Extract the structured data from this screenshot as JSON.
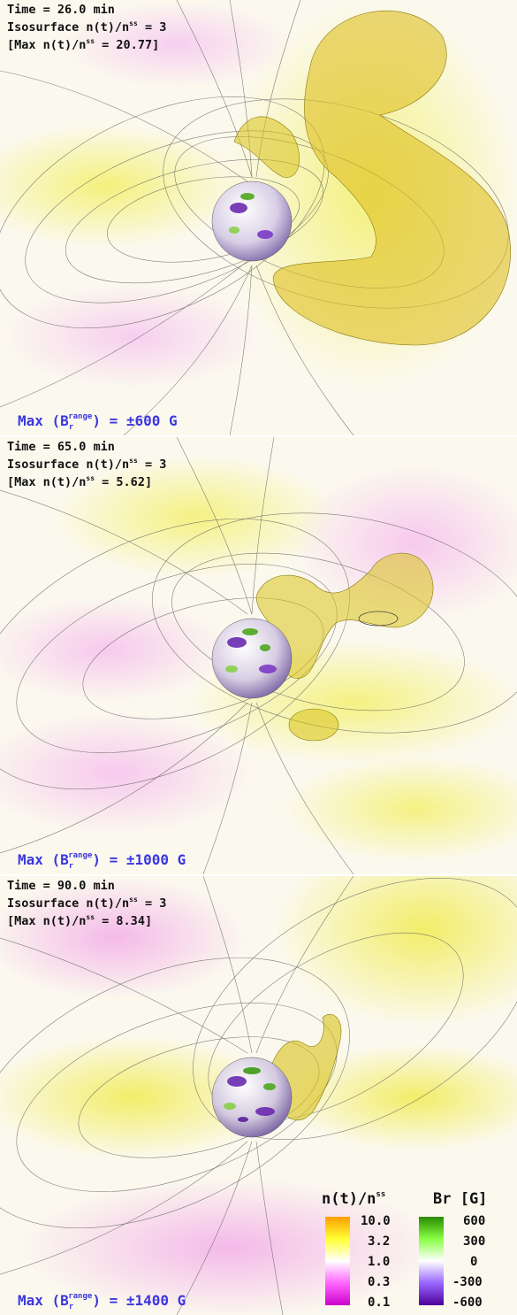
{
  "panels": [
    {
      "time": "Time = 26.0 min",
      "iso_prefix": "Isosurface n(t)/n",
      "iso_sup": "ss",
      "iso_suffix": " = 3",
      "max_prefix": "[Max n(t)/n",
      "max_sup": "ss",
      "max_suffix": " = 20.77]",
      "br_prefix": "Max (B",
      "br_sub": "r",
      "br_sup": "range",
      "br_suffix": ") = ±600 G"
    },
    {
      "time": "Time = 65.0 min",
      "iso_prefix": "Isosurface n(t)/n",
      "iso_sup": "ss",
      "iso_suffix": " = 3",
      "max_prefix": "[Max n(t)/n",
      "max_sup": "ss",
      "max_suffix": " = 5.62]",
      "br_prefix": "Max (B",
      "br_sub": "r",
      "br_sup": "range",
      "br_suffix": ") = ±1000 G"
    },
    {
      "time": "Time = 90.0 min",
      "iso_prefix": "Isosurface n(t)/n",
      "iso_sup": "ss",
      "iso_suffix": " = 3",
      "max_prefix": "[Max n(t)/n",
      "max_sup": "ss",
      "max_suffix": " = 8.34]",
      "br_prefix": "Max (B",
      "br_sub": "r",
      "br_sup": "range",
      "br_suffix": ") = ±1400 G"
    }
  ],
  "legend": {
    "density_title": "n(t)/n",
    "density_title_sup": "ss",
    "density_ticks": [
      "10.0",
      "3.2",
      "1.0",
      "0.3",
      "0.1"
    ],
    "density_colors": [
      "#ff9f00",
      "#ffff33",
      "#ffffff",
      "#ff66ff",
      "#cc00cc"
    ],
    "br_title": "Br [G]",
    "br_ticks": [
      "600",
      "300",
      "0",
      "-300",
      "-600"
    ],
    "br_colors": [
      "#2a8a00",
      "#88ff44",
      "#ffffff",
      "#9966ff",
      "#4a0099"
    ]
  }
}
